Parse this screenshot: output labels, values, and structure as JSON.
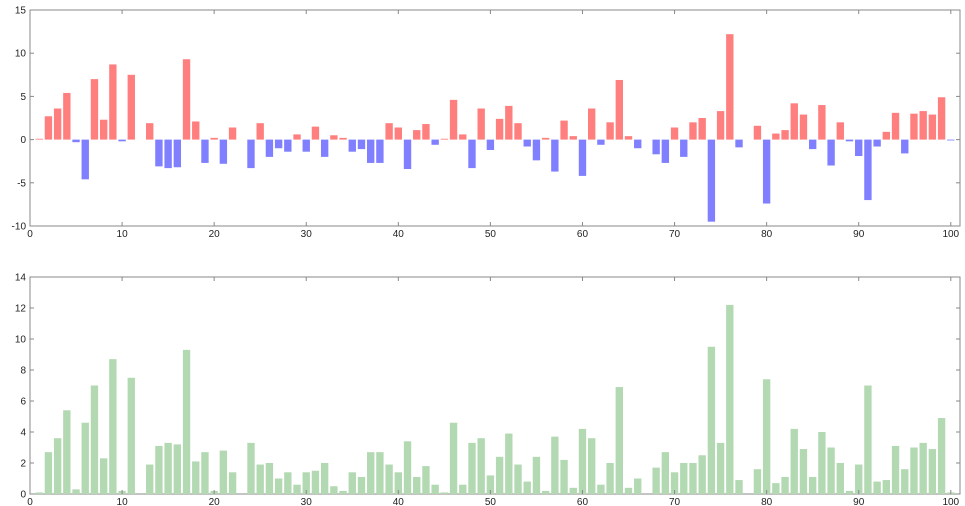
{
  "chart_data": [
    {
      "type": "bar",
      "title": "",
      "xlabel": "",
      "ylabel": "",
      "xlim": [
        0,
        101
      ],
      "ylim": [
        -10,
        15
      ],
      "xticks": [
        0,
        10,
        20,
        30,
        40,
        50,
        60,
        70,
        80,
        90,
        100
      ],
      "yticks": [
        -10,
        -5,
        0,
        5,
        10,
        15
      ],
      "grid": false,
      "colors": {
        "positive": "#ff7f7f",
        "negative": "#7f7fff"
      },
      "x": [
        1,
        2,
        3,
        4,
        5,
        6,
        7,
        8,
        9,
        10,
        11,
        12,
        13,
        14,
        15,
        16,
        17,
        18,
        19,
        20,
        21,
        22,
        23,
        24,
        25,
        26,
        27,
        28,
        29,
        30,
        31,
        32,
        33,
        34,
        35,
        36,
        37,
        38,
        39,
        40,
        41,
        42,
        43,
        44,
        45,
        46,
        47,
        48,
        49,
        50,
        51,
        52,
        53,
        54,
        55,
        56,
        57,
        58,
        59,
        60,
        61,
        62,
        63,
        64,
        65,
        66,
        67,
        68,
        69,
        70,
        71,
        72,
        73,
        74,
        75,
        76,
        77,
        78,
        79,
        80,
        81,
        82,
        83,
        84,
        85,
        86,
        87,
        88,
        89,
        90,
        91,
        92,
        93,
        94,
        95,
        96,
        97,
        98,
        99,
        100
      ],
      "values": [
        0.1,
        2.7,
        3.6,
        5.4,
        -0.3,
        -4.6,
        7.0,
        2.3,
        8.7,
        -0.2,
        7.5,
        0.0,
        1.9,
        -3.1,
        -3.3,
        -3.2,
        9.3,
        2.1,
        -2.7,
        0.2,
        -2.8,
        1.4,
        0.0,
        -3.3,
        1.9,
        -2.0,
        -1.0,
        -1.4,
        0.6,
        -1.4,
        1.5,
        -2.0,
        0.5,
        0.2,
        -1.4,
        -1.1,
        -2.7,
        -2.7,
        1.9,
        1.4,
        -3.4,
        1.1,
        1.8,
        -0.6,
        0.1,
        4.6,
        0.6,
        -3.3,
        3.6,
        -1.2,
        2.4,
        3.9,
        1.9,
        -0.8,
        -2.4,
        0.2,
        -3.7,
        2.2,
        0.4,
        -4.2,
        3.6,
        -0.6,
        2.0,
        6.9,
        0.4,
        -1.0,
        0.0,
        -1.7,
        -2.7,
        1.4,
        -2.0,
        2.0,
        2.5,
        -9.5,
        3.3,
        12.2,
        -0.9,
        0.0,
        1.6,
        -7.4,
        0.7,
        1.1,
        4.2,
        2.9,
        -1.1,
        4.0,
        -3.0,
        2.0,
        -0.2,
        -1.9,
        -7.0,
        -0.8,
        0.9,
        3.1,
        -1.6,
        3.0,
        3.3,
        2.9,
        4.9,
        -0.1
      ]
    },
    {
      "type": "bar",
      "title": "",
      "xlabel": "",
      "ylabel": "",
      "xlim": [
        0,
        101
      ],
      "ylim": [
        0,
        14
      ],
      "xticks": [
        0,
        10,
        20,
        30,
        40,
        50,
        60,
        70,
        80,
        90,
        100
      ],
      "yticks": [
        0,
        2,
        4,
        6,
        8,
        10,
        12,
        14
      ],
      "grid": false,
      "colors": {
        "bar": "#b3d9b3"
      },
      "x": [
        1,
        2,
        3,
        4,
        5,
        6,
        7,
        8,
        9,
        10,
        11,
        12,
        13,
        14,
        15,
        16,
        17,
        18,
        19,
        20,
        21,
        22,
        23,
        24,
        25,
        26,
        27,
        28,
        29,
        30,
        31,
        32,
        33,
        34,
        35,
        36,
        37,
        38,
        39,
        40,
        41,
        42,
        43,
        44,
        45,
        46,
        47,
        48,
        49,
        50,
        51,
        52,
        53,
        54,
        55,
        56,
        57,
        58,
        59,
        60,
        61,
        62,
        63,
        64,
        65,
        66,
        67,
        68,
        69,
        70,
        71,
        72,
        73,
        74,
        75,
        76,
        77,
        78,
        79,
        80,
        81,
        82,
        83,
        84,
        85,
        86,
        87,
        88,
        89,
        90,
        91,
        92,
        93,
        94,
        95,
        96,
        97,
        98,
        99,
        100
      ],
      "values": [
        0.1,
        2.7,
        3.6,
        5.4,
        0.3,
        4.6,
        7.0,
        2.3,
        8.7,
        0.2,
        7.5,
        0.0,
        1.9,
        3.1,
        3.3,
        3.2,
        9.3,
        2.1,
        2.7,
        0.2,
        2.8,
        1.4,
        0.0,
        3.3,
        1.9,
        2.0,
        1.0,
        1.4,
        0.6,
        1.4,
        1.5,
        2.0,
        0.5,
        0.2,
        1.4,
        1.1,
        2.7,
        2.7,
        1.9,
        1.4,
        3.4,
        1.1,
        1.8,
        0.6,
        0.1,
        4.6,
        0.6,
        3.3,
        3.6,
        1.2,
        2.4,
        3.9,
        1.9,
        0.8,
        2.4,
        0.2,
        3.7,
        2.2,
        0.4,
        4.2,
        3.6,
        0.6,
        2.0,
        6.9,
        0.4,
        1.0,
        0.0,
        1.7,
        2.7,
        1.4,
        2.0,
        2.0,
        2.5,
        9.5,
        3.3,
        12.2,
        0.9,
        0.0,
        1.6,
        7.4,
        0.7,
        1.1,
        4.2,
        2.9,
        1.1,
        4.0,
        3.0,
        2.0,
        0.2,
        1.9,
        7.0,
        0.8,
        0.9,
        3.1,
        1.6,
        3.0,
        3.3,
        2.9,
        4.9,
        0.1
      ]
    }
  ]
}
